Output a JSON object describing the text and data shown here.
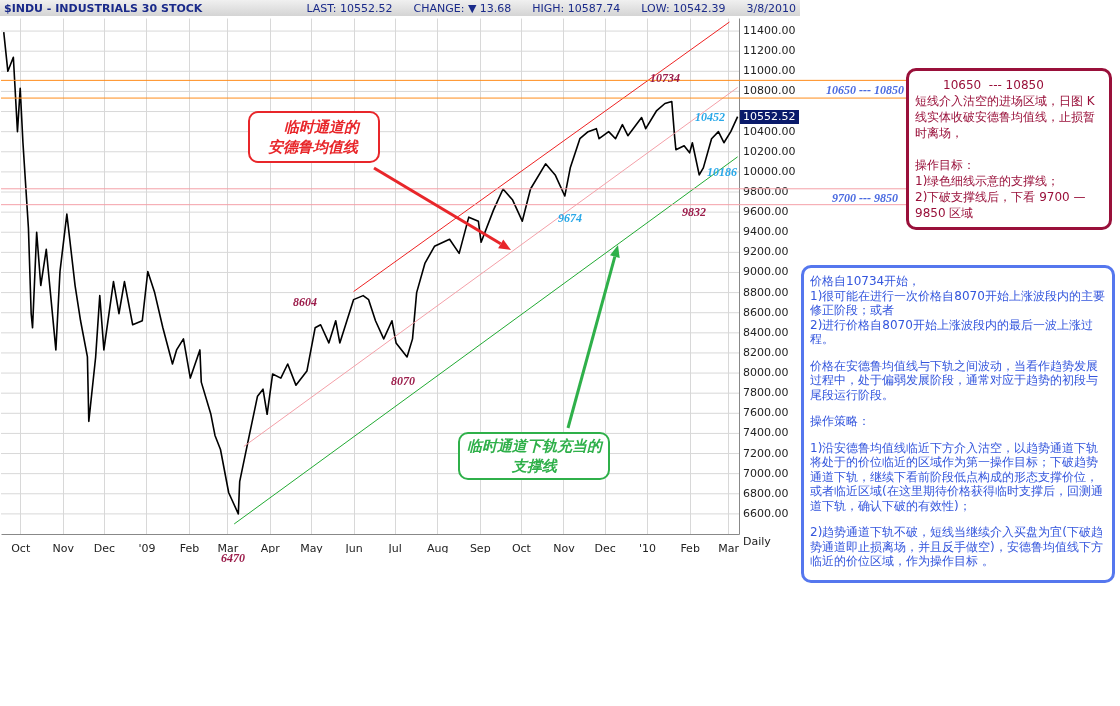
{
  "chart_data": {
    "type": "line",
    "title": "$INDU - INDUSTRIALS 30 STOCK",
    "subtitle": "LAST: 10552.52      CHANGE: ▼ 13.68      HIGH: 10587.74      LOW: 10542.39      3/8/2010",
    "xlim": [
      "2008-09-17",
      "2010-03-09"
    ],
    "xticks": [
      {
        "value": "2008-10-01",
        "label": "Oct"
      },
      {
        "value": "2008-11-01",
        "label": "Nov"
      },
      {
        "value": "2008-12-01",
        "label": "Dec"
      },
      {
        "value": "2009-01-01",
        "label": "'09"
      },
      {
        "value": "2009-02-01",
        "label": "Feb"
      },
      {
        "value": "2009-03-01",
        "label": "Mar"
      },
      {
        "value": "2009-04-01",
        "label": "Apr"
      },
      {
        "value": "2009-05-01",
        "label": "May"
      },
      {
        "value": "2009-06-01",
        "label": "Jun"
      },
      {
        "value": "2009-07-01",
        "label": "Jul"
      },
      {
        "value": "2009-08-01",
        "label": "Aug"
      },
      {
        "value": "2009-09-01",
        "label": "Sep"
      },
      {
        "value": "2009-10-01",
        "label": "Oct"
      },
      {
        "value": "2009-11-01",
        "label": "Nov"
      },
      {
        "value": "2009-12-01",
        "label": "Dec"
      },
      {
        "value": "2010-01-01",
        "label": "'10"
      },
      {
        "value": "2010-02-01",
        "label": "Feb"
      },
      {
        "value": "2010-03-01",
        "label": "Mar"
      }
    ],
    "ylim": [
      6400,
      11530
    ],
    "yticks": [
      {
        "value": 6600,
        "label": "6600.00"
      },
      {
        "value": 6800,
        "label": "6800.00"
      },
      {
        "value": 7000,
        "label": "7000.00"
      },
      {
        "value": 7200,
        "label": "7200.00"
      },
      {
        "value": 7400,
        "label": "7400.00"
      },
      {
        "value": 7600,
        "label": "7600.00"
      },
      {
        "value": 7800,
        "label": "7800.00"
      },
      {
        "value": 8000,
        "label": "8000.00"
      },
      {
        "value": 8200,
        "label": "8200.00"
      },
      {
        "value": 8400,
        "label": "8400.00"
      },
      {
        "value": 8600,
        "label": "8600.00"
      },
      {
        "value": 8800,
        "label": "8800.00"
      },
      {
        "value": 9000,
        "label": "9000.00"
      },
      {
        "value": 9200,
        "label": "9200.00"
      },
      {
        "value": 9400,
        "label": "9400.00"
      },
      {
        "value": 9600,
        "label": "9600.00"
      },
      {
        "value": 9800,
        "label": "9800.00"
      },
      {
        "value": 10000,
        "label": "10000.00"
      },
      {
        "value": 10200,
        "label": "10200.00"
      },
      {
        "value": 10400,
        "label": "10400.00"
      },
      {
        "value": 10600,
        "label": null
      },
      {
        "value": 10800,
        "label": "10800.00"
      },
      {
        "value": 11000,
        "label": "11000.00"
      },
      {
        "value": 11200,
        "label": "11200.00"
      },
      {
        "value": 11400,
        "label": "11400.00"
      }
    ],
    "grid": true,
    "series": [
      {
        "color": "#000000",
        "x": [
          "2008-09-19",
          "2008-09-22",
          "2008-09-26",
          "2008-09-29",
          "2008-10-01",
          "2008-10-03",
          "2008-10-07",
          "2008-10-09",
          "2008-10-10",
          "2008-10-13",
          "2008-10-16",
          "2008-10-20",
          "2008-10-27",
          "2008-10-30",
          "2008-11-04",
          "2008-11-10",
          "2008-11-14",
          "2008-11-19",
          "2008-11-20",
          "2008-11-25",
          "2008-11-28",
          "2008-12-01",
          "2008-12-08",
          "2008-12-12",
          "2008-12-16",
          "2008-12-22",
          "2008-12-29",
          "2009-01-02",
          "2009-01-07",
          "2009-01-13",
          "2009-01-20",
          "2009-01-23",
          "2009-01-28",
          "2009-02-02",
          "2009-02-09",
          "2009-02-10",
          "2009-02-17",
          "2009-02-20",
          "2009-02-24",
          "2009-03-02",
          "2009-03-09",
          "2009-03-10",
          "2009-03-17",
          "2009-03-23",
          "2009-03-27",
          "2009-03-30",
          "2009-04-03",
          "2009-04-09",
          "2009-04-14",
          "2009-04-20",
          "2009-04-28",
          "2009-05-04",
          "2009-05-08",
          "2009-05-14",
          "2009-05-19",
          "2009-05-22",
          "2009-06-01",
          "2009-06-08",
          "2009-06-12",
          "2009-06-17",
          "2009-06-23",
          "2009-06-29",
          "2009-07-02",
          "2009-07-10",
          "2009-07-14",
          "2009-07-17",
          "2009-07-23",
          "2009-07-30",
          "2009-08-10",
          "2009-08-17",
          "2009-08-24",
          "2009-08-31",
          "2009-09-02",
          "2009-09-11",
          "2009-09-18",
          "2009-09-25",
          "2009-10-02",
          "2009-10-08",
          "2009-10-19",
          "2009-10-26",
          "2009-11-02",
          "2009-11-06",
          "2009-11-13",
          "2009-11-19",
          "2009-11-25",
          "2009-11-27",
          "2009-12-04",
          "2009-12-09",
          "2009-12-14",
          "2009-12-18",
          "2009-12-28",
          "2009-12-31",
          "2010-01-08",
          "2010-01-14",
          "2010-01-19",
          "2010-01-21",
          "2010-01-22",
          "2010-01-28",
          "2010-02-01",
          "2010-02-03",
          "2010-02-08",
          "2010-02-11",
          "2010-02-17",
          "2010-02-22",
          "2010-02-26",
          "2010-03-03",
          "2010-03-08"
        ],
        "values": [
          11390,
          11000,
          11140,
          10400,
          10830,
          10290,
          9440,
          8590,
          8450,
          9400,
          8870,
          9230,
          8230,
          9010,
          9580,
          8870,
          8520,
          8160,
          7520,
          8160,
          8770,
          8230,
          8910,
          8590,
          8910,
          8480,
          8520,
          9010,
          8800,
          8450,
          8090,
          8230,
          8340,
          7950,
          8230,
          7910,
          7590,
          7380,
          7240,
          6810,
          6600,
          6920,
          7380,
          7770,
          7840,
          7590,
          7990,
          7950,
          8090,
          7880,
          8020,
          8450,
          8480,
          8300,
          8520,
          8300,
          8730,
          8770,
          8730,
          8520,
          8340,
          8520,
          8300,
          8160,
          8340,
          8800,
          9090,
          9260,
          9330,
          9190,
          9550,
          9510,
          9300,
          9620,
          9830,
          9720,
          9510,
          9830,
          10080,
          9970,
          9760,
          10040,
          10330,
          10400,
          10430,
          10330,
          10400,
          10330,
          10470,
          10360,
          10540,
          10430,
          10610,
          10680,
          10700,
          10360,
          10220,
          10260,
          10190,
          10290,
          9970,
          10040,
          10330,
          10400,
          10290,
          10400,
          10550
        ]
      },
      {
        "color": "#ee2222",
        "x": [
          "2009-06-01",
          "2010-03-02"
        ],
        "values": [
          8810,
          11490
        ]
      },
      {
        "color": "#f4a0a8",
        "x": [
          "2009-03-13",
          "2010-03-08"
        ],
        "values": [
          7270,
          10840
        ]
      },
      {
        "color": "#22aa33",
        "x": [
          "2009-03-06",
          "2010-03-08"
        ],
        "values": [
          6500,
          10150
        ]
      }
    ],
    "ref_lines": [
      {
        "axis": "y",
        "value": 10910,
        "color": "#ff8c1a"
      },
      {
        "axis": "y",
        "value": 10734,
        "color": "#ff8c1a"
      },
      {
        "axis": "y",
        "value": 9832,
        "color": "#f4a0a8"
      },
      {
        "axis": "y",
        "value": 9674,
        "color": "#f4a0a8"
      }
    ],
    "annotations": [
      "8604",
      "6470",
      "8070",
      "9674",
      "10734",
      "10452",
      "10186",
      "9832",
      "10552.52",
      "临时通道的安德鲁均值线",
      "临时通道下轨充当的支撑线",
      "10650 --- 10850",
      "9700 --- 9850",
      "10650  --- 10850",
      "短线介入沽空的进场区域，日图 K 线实体收破安德鲁均值线，止损暂时离场，",
      "操作目标：",
      "1)绿色细线示意的支撑线；",
      "2)下破支撑线后，下看 9700 — 9850 区域",
      "价格自10734开始，",
      "1)很可能在进行一次价格自8070开始上涨波段内的主要修正阶段；或者",
      "2)进行价格自8070开始上涨波段内的最后一波上涨过程。",
      "价格在安德鲁均值线与下轨之间波动，当看作趋势发展过程中，处于偏弱发展阶段，通常对应于趋势的初段与尾段运行阶段。",
      "操作策略：",
      "1)沿安德鲁均值线临近下方介入沽空，以趋势通道下轨将处于的价位临近的区域作为第一操作目标；下破趋势通道下轨，继续下看前阶段低点构成的形态支撑价位，或者临近区域(在这里期待价格获得临时支撑后，回测通道下轨，确认下破的有效性)；",
      "2)趋势通道下轨不破，短线当继续介入买盘为宜(下破趋势通道即止损离场，并且反手做空)，安德鲁均值线下方临近的价位区域，作为操作目标 。",
      "Daily"
    ]
  }
}
